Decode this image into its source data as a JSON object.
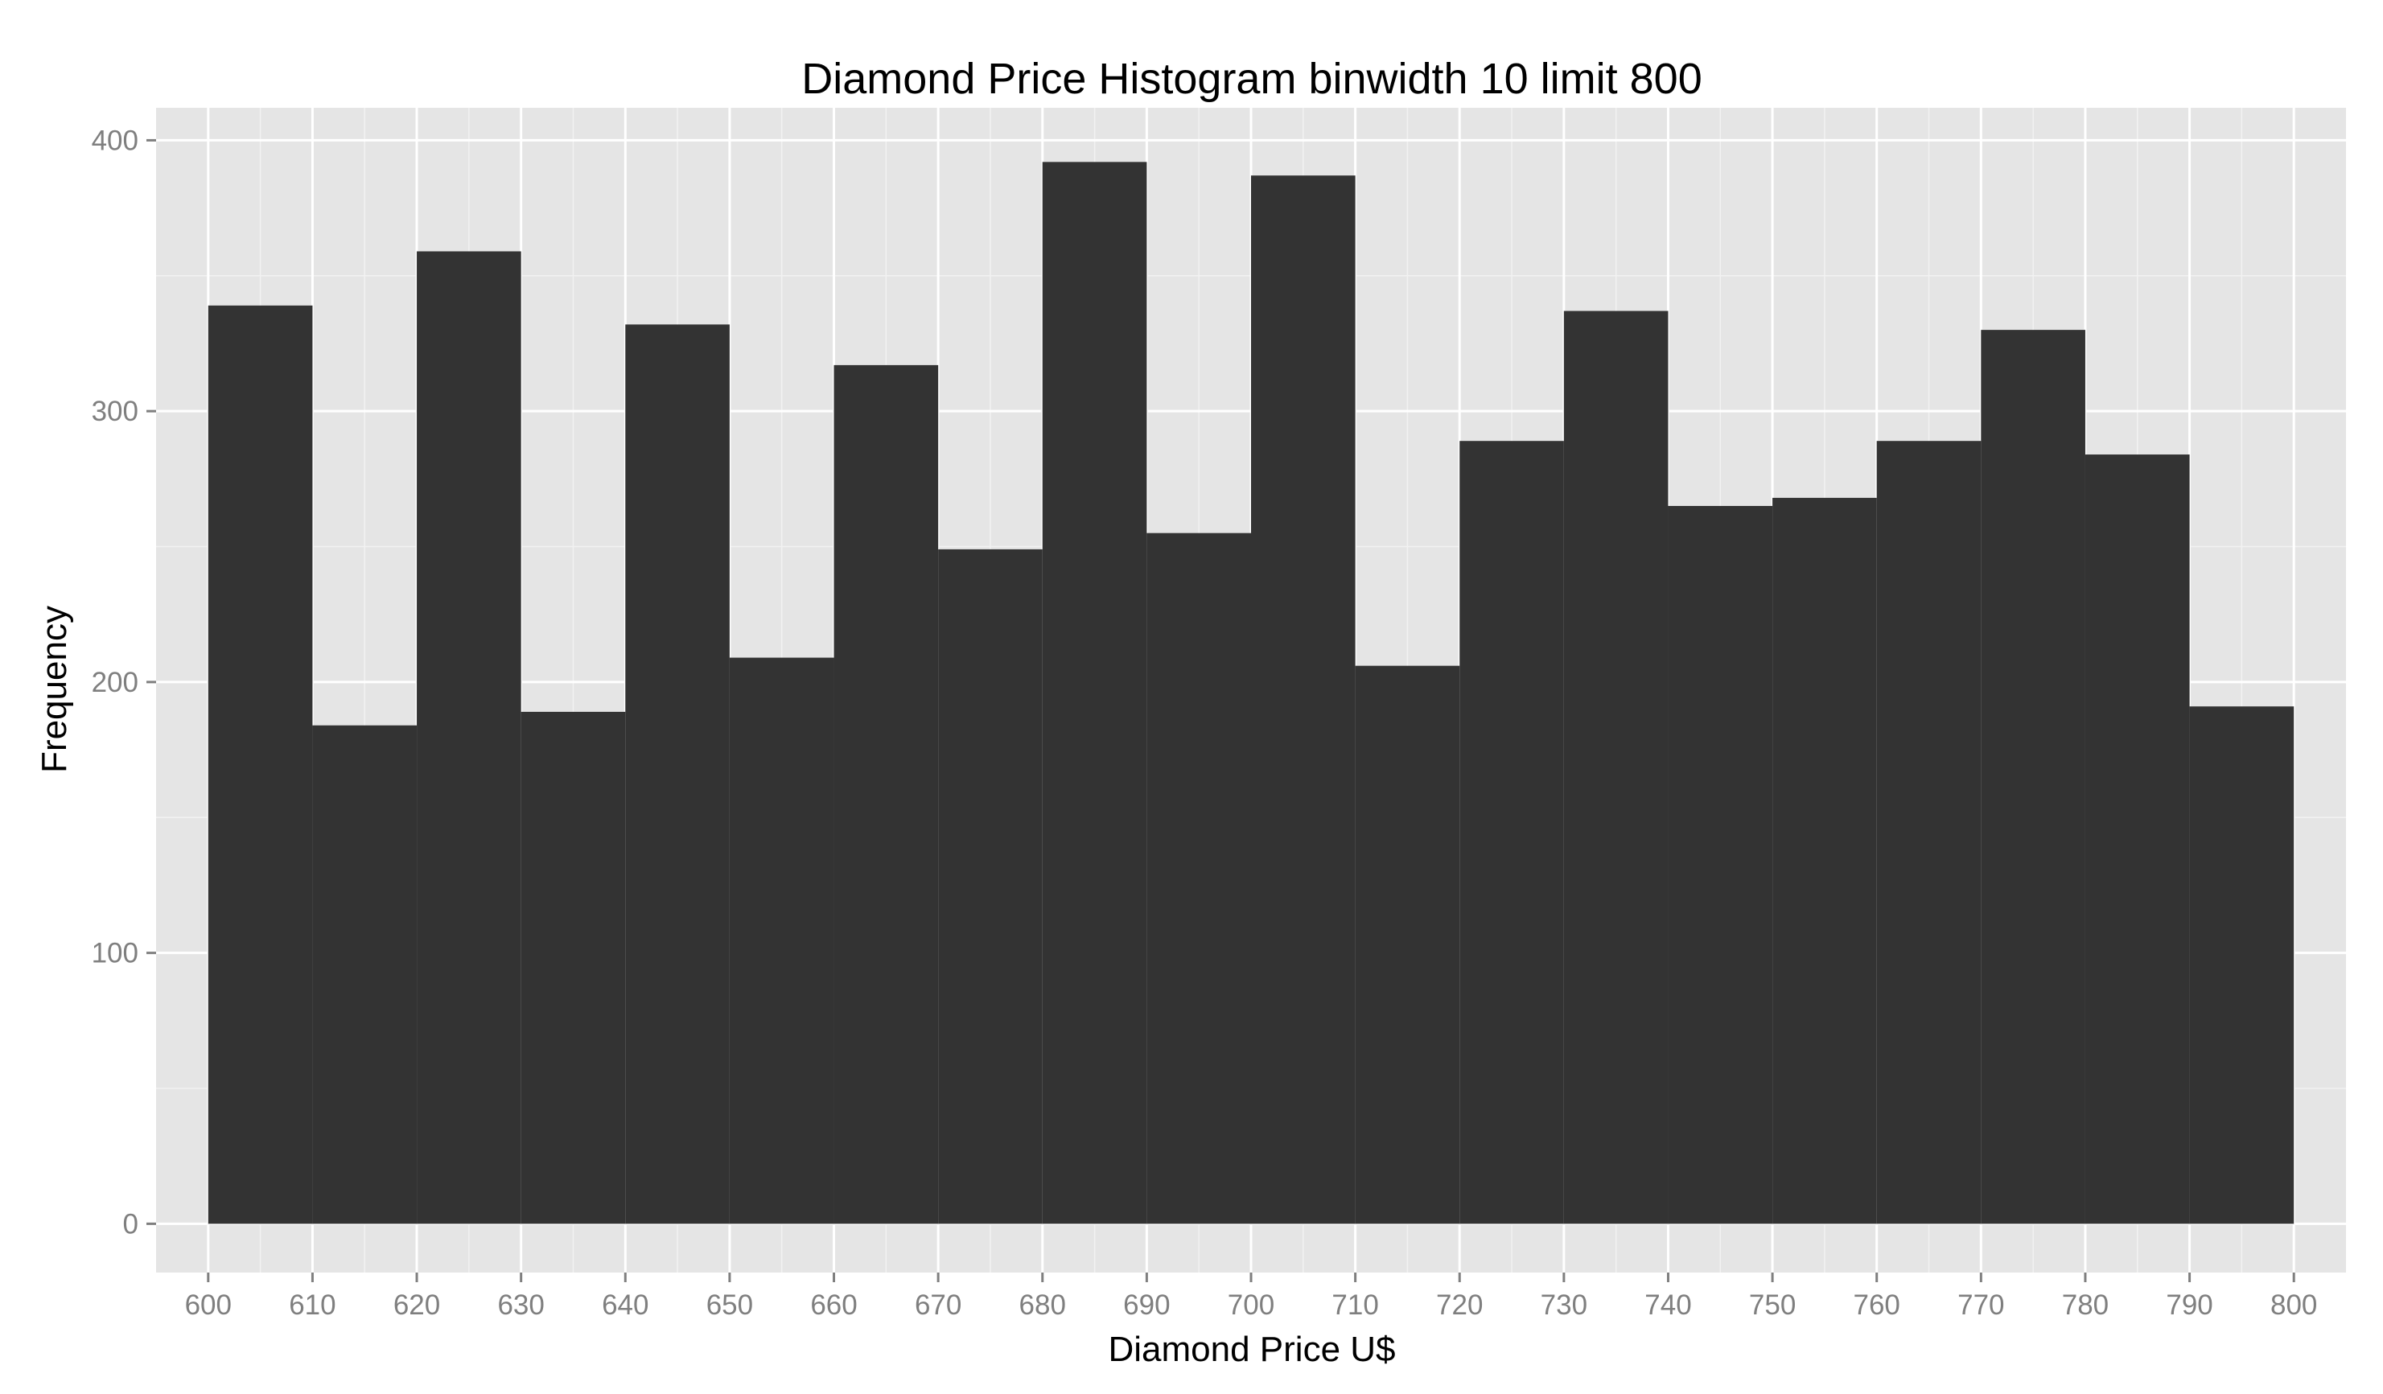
{
  "chart_data": {
    "type": "bar",
    "title": "Diamond Price Histogram binwidth 10 limit 800",
    "xlabel": "Diamond Price U$",
    "ylabel": "Frequency",
    "binwidth": 10,
    "x_ticks": [
      "600",
      "610",
      "620",
      "630",
      "640",
      "650",
      "660",
      "670",
      "680",
      "690",
      "700",
      "710",
      "720",
      "730",
      "740",
      "750",
      "760",
      "770",
      "780",
      "790",
      "800"
    ],
    "y_ticks": [
      "0",
      "100",
      "200",
      "300",
      "400"
    ],
    "xlim": [
      595,
      805
    ],
    "ylim": [
      -18,
      412
    ],
    "bins": [
      {
        "start": 600,
        "end": 610,
        "count": 339
      },
      {
        "start": 610,
        "end": 620,
        "count": 184
      },
      {
        "start": 620,
        "end": 630,
        "count": 359
      },
      {
        "start": 630,
        "end": 640,
        "count": 189
      },
      {
        "start": 640,
        "end": 650,
        "count": 332
      },
      {
        "start": 650,
        "end": 660,
        "count": 209
      },
      {
        "start": 660,
        "end": 670,
        "count": 317
      },
      {
        "start": 670,
        "end": 680,
        "count": 249
      },
      {
        "start": 680,
        "end": 690,
        "count": 392
      },
      {
        "start": 690,
        "end": 700,
        "count": 255
      },
      {
        "start": 700,
        "end": 710,
        "count": 387
      },
      {
        "start": 710,
        "end": 720,
        "count": 206
      },
      {
        "start": 720,
        "end": 730,
        "count": 289
      },
      {
        "start": 730,
        "end": 740,
        "count": 337
      },
      {
        "start": 740,
        "end": 750,
        "count": 265
      },
      {
        "start": 750,
        "end": 760,
        "count": 268
      },
      {
        "start": 760,
        "end": 770,
        "count": 289
      },
      {
        "start": 770,
        "end": 780,
        "count": 330
      },
      {
        "start": 780,
        "end": 790,
        "count": 284
      },
      {
        "start": 790,
        "end": 800,
        "count": 191
      }
    ],
    "grid": true,
    "legend": "none",
    "colors": {
      "panel_background": "#e5e5e5",
      "major_grid": "#ffffff",
      "minor_grid": "#f2f2f2",
      "bar_fill": "#333333",
      "tick_text": "#7f7f7f",
      "tick_mark": "#7f7f7f"
    }
  }
}
